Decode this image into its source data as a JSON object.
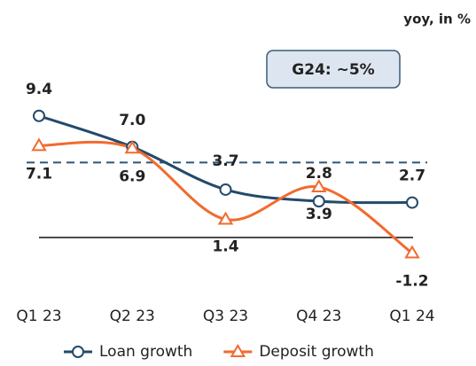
{
  "chart_data": {
    "type": "line",
    "unit_label": "yoy, in %",
    "categories": [
      "Q1 23",
      "Q2 23",
      "Q3 23",
      "Q4 23",
      "Q1 24"
    ],
    "series": [
      {
        "name": "Loan growth",
        "color": "#234a6b",
        "marker": "circle",
        "values": [
          9.4,
          7.0,
          3.7,
          2.8,
          2.7
        ],
        "value_labels": [
          "9.4",
          "7.0",
          "3.7",
          "2.8",
          "2.7"
        ]
      },
      {
        "name": "Deposit growth",
        "color": "#f26a2e",
        "marker": "triangle",
        "values": [
          7.1,
          6.9,
          1.4,
          3.9,
          -1.2
        ],
        "value_labels": [
          "7.1",
          "6.9",
          "1.4",
          "3.9",
          "-1.2"
        ]
      }
    ],
    "target": {
      "value": 5.8,
      "label": "G24: ~5%"
    },
    "ylim": [
      -2.5,
      11
    ],
    "legend": "bottom"
  }
}
